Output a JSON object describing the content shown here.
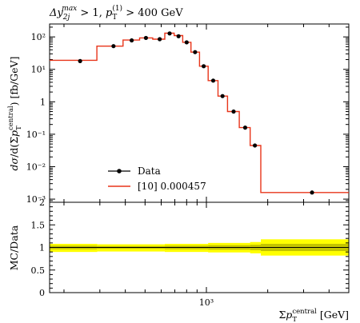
{
  "chart_data": [
    {
      "type": "line",
      "title": "Δy₂ⱼ^max > 1, p_T^(1) > 400 GeV",
      "ylabel": "dσ/d(Σp_T^central) [fb/GeV]",
      "y_scale": "log",
      "ylim": [
        0.0008,
        250
      ],
      "x_scale": "log",
      "xlim": [
        170,
        5000
      ],
      "y_ticks": [
        {
          "value": 0.001,
          "label": "10⁻³"
        },
        {
          "value": 0.01,
          "label": "10⁻²"
        },
        {
          "value": 0.1,
          "label": "10⁻¹"
        },
        {
          "value": 1,
          "label": "1"
        },
        {
          "value": 10,
          "label": "10¹"
        },
        {
          "value": 100,
          "label": "10²"
        }
      ],
      "legend_position": "center-left",
      "series": [
        {
          "name": "Data",
          "style": "markers",
          "color": "#000000",
          "points": [
            {
              "x": 240,
              "y": 18
            },
            {
              "x": 350,
              "y": 52
            },
            {
              "x": 430,
              "y": 78
            },
            {
              "x": 505,
              "y": 93
            },
            {
              "x": 590,
              "y": 85
            },
            {
              "x": 660,
              "y": 128
            },
            {
              "x": 730,
              "y": 105
            },
            {
              "x": 800,
              "y": 68
            },
            {
              "x": 880,
              "y": 34
            },
            {
              "x": 970,
              "y": 12.5
            },
            {
              "x": 1080,
              "y": 4.5
            },
            {
              "x": 1200,
              "y": 1.5
            },
            {
              "x": 1360,
              "y": 0.5
            },
            {
              "x": 1550,
              "y": 0.16
            },
            {
              "x": 1730,
              "y": 0.045
            },
            {
              "x": 3300,
              "y": 0.0016
            }
          ]
        },
        {
          "name": "[10] 0.000457",
          "style": "histogram",
          "color": "#e8351a",
          "bins": [
            {
              "x0": 170,
              "x1": 290,
              "y": 19
            },
            {
              "x0": 290,
              "x1": 390,
              "y": 52
            },
            {
              "x0": 390,
              "x1": 470,
              "y": 80
            },
            {
              "x0": 470,
              "x1": 545,
              "y": 93
            },
            {
              "x0": 545,
              "x1": 625,
              "y": 85
            },
            {
              "x0": 625,
              "x1": 695,
              "y": 130
            },
            {
              "x0": 695,
              "x1": 765,
              "y": 110
            },
            {
              "x0": 765,
              "x1": 840,
              "y": 68
            },
            {
              "x0": 840,
              "x1": 925,
              "y": 34
            },
            {
              "x0": 925,
              "x1": 1020,
              "y": 12.5
            },
            {
              "x0": 1020,
              "x1": 1140,
              "y": 4.5
            },
            {
              "x0": 1140,
              "x1": 1270,
              "y": 1.5
            },
            {
              "x0": 1270,
              "x1": 1450,
              "y": 0.5
            },
            {
              "x0": 1450,
              "x1": 1640,
              "y": 0.16
            },
            {
              "x0": 1640,
              "x1": 1850,
              "y": 0.045
            },
            {
              "x0": 1850,
              "x1": 5000,
              "y": 0.0016
            }
          ]
        }
      ]
    },
    {
      "type": "area",
      "ylabel": "MC/Data",
      "xlabel": "Σp_T^central [GeV]",
      "x_scale": "log",
      "xlim": [
        170,
        5000
      ],
      "ylim": [
        0,
        2
      ],
      "y_ticks": [
        {
          "value": 0,
          "label": "0"
        },
        {
          "value": 0.5,
          "label": "0.5"
        },
        {
          "value": 1,
          "label": "1"
        },
        {
          "value": 1.5,
          "label": "1.5"
        },
        {
          "value": 2,
          "label": "2"
        }
      ],
      "x_ticks": [
        {
          "value": 1000,
          "label": "10³"
        }
      ],
      "reference_line": 1,
      "band": {
        "color": "#ffff00",
        "inner_color": "#c4c400",
        "bins": [
          {
            "x0": 170,
            "x1": 290,
            "lo": 0.9,
            "hi": 1.08,
            "inner_lo": 0.96,
            "inner_hi": 1.04
          },
          {
            "x0": 290,
            "x1": 625,
            "lo": 0.91,
            "hi": 1.07,
            "inner_lo": 0.97,
            "inner_hi": 1.03
          },
          {
            "x0": 625,
            "x1": 1020,
            "lo": 0.9,
            "hi": 1.08,
            "inner_lo": 0.96,
            "inner_hi": 1.04
          },
          {
            "x0": 1020,
            "x1": 1640,
            "lo": 0.89,
            "hi": 1.1,
            "inner_lo": 0.95,
            "inner_hi": 1.05
          },
          {
            "x0": 1640,
            "x1": 1850,
            "lo": 0.87,
            "hi": 1.12,
            "inner_lo": 0.94,
            "inner_hi": 1.06
          },
          {
            "x0": 1850,
            "x1": 5000,
            "lo": 0.82,
            "hi": 1.18,
            "inner_lo": 0.92,
            "inner_hi": 1.08
          }
        ]
      }
    }
  ]
}
